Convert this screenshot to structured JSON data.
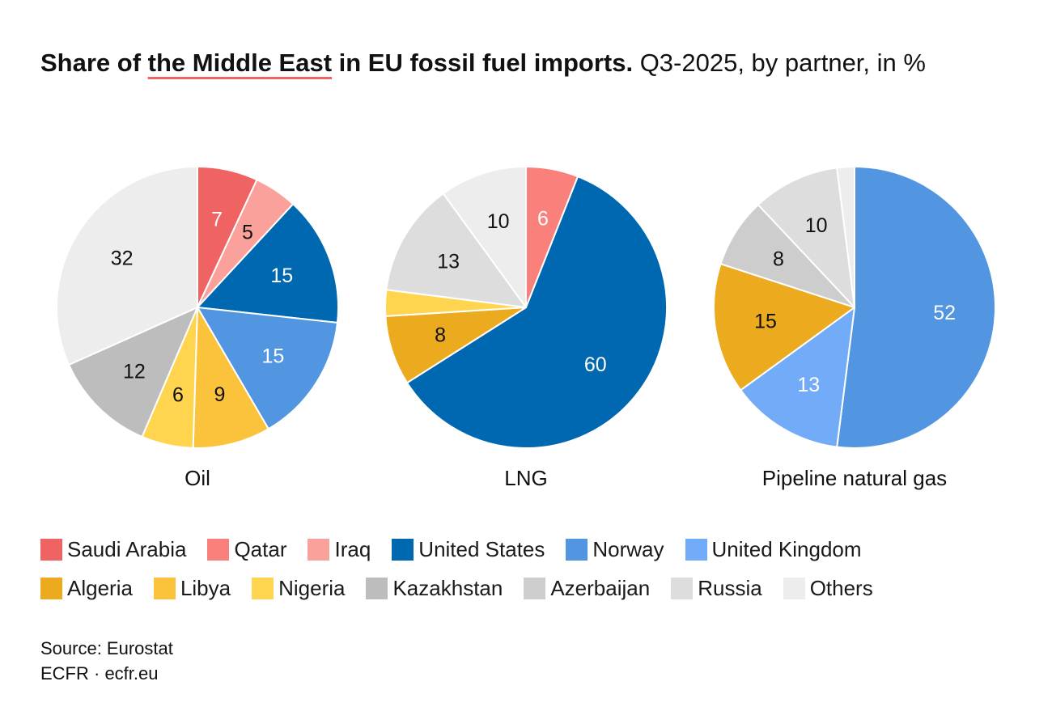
{
  "title": {
    "bold_before": "Share of ",
    "highlight": "the Middle East",
    "bold_after": " in EU fossil fuel imports.",
    "normal": " Q3-2025, by partner, in %"
  },
  "colors": {
    "Saudi Arabia": "#ef6363",
    "Qatar": "#fa817b",
    "Iraq": "#fba19c",
    "United States": "#0068b0",
    "Norway": "#5296e2",
    "United Kingdom": "#72acf8",
    "Algeria": "#ecab1f",
    "Libya": "#fbc23b",
    "Nigeria": "#ffd54f",
    "Kazakhstan": "#bdbdbd",
    "Azerbaijan": "#cdcdcd",
    "Russia": "#dddddd",
    "Others": "#ededed"
  },
  "chart_data": [
    {
      "type": "pie",
      "title": "Oil",
      "slices": [
        {
          "name": "Saudi Arabia",
          "value": 7,
          "label": "7",
          "label_color": "#ffffff"
        },
        {
          "name": "Iraq",
          "value": 5,
          "label": "5",
          "label_color": "#111111"
        },
        {
          "name": "United States",
          "value": 15,
          "label": "15",
          "label_color": "#ffffff"
        },
        {
          "name": "Norway",
          "value": 15,
          "label": "15",
          "label_color": "#ffffff"
        },
        {
          "name": "Libya",
          "value": 9,
          "label": "9",
          "label_color": "#111111"
        },
        {
          "name": "Nigeria",
          "value": 6,
          "label": "6",
          "label_color": "#111111"
        },
        {
          "name": "Kazakhstan",
          "value": 12,
          "label": "12",
          "label_color": "#111111"
        },
        {
          "name": "Others",
          "value": 32,
          "label": "32",
          "label_color": "#111111"
        }
      ]
    },
    {
      "type": "pie",
      "title": "LNG",
      "slices": [
        {
          "name": "Qatar",
          "value": 6,
          "label": "6",
          "label_color": "#ffffff"
        },
        {
          "name": "United States",
          "value": 60,
          "label": "60",
          "label_color": "#ffffff"
        },
        {
          "name": "Algeria",
          "value": 8,
          "label": "8",
          "label_color": "#111111"
        },
        {
          "name": "Nigeria",
          "value": 3,
          "label": "",
          "label_color": "#111111"
        },
        {
          "name": "Russia",
          "value": 13,
          "label": "13",
          "label_color": "#111111"
        },
        {
          "name": "Others",
          "value": 10,
          "label": "10",
          "label_color": "#111111"
        }
      ]
    },
    {
      "type": "pie",
      "title": "Pipeline natural gas",
      "slices": [
        {
          "name": "Norway",
          "value": 52,
          "label": "52",
          "label_color": "#ffffff"
        },
        {
          "name": "United Kingdom",
          "value": 13,
          "label": "13",
          "label_color": "#ffffff"
        },
        {
          "name": "Algeria",
          "value": 15,
          "label": "15",
          "label_color": "#111111"
        },
        {
          "name": "Azerbaijan",
          "value": 8,
          "label": "8",
          "label_color": "#111111"
        },
        {
          "name": "Russia",
          "value": 10,
          "label": "10",
          "label_color": "#111111"
        },
        {
          "name": "Others",
          "value": 2,
          "label": "",
          "label_color": "#111111"
        }
      ]
    }
  ],
  "legend": [
    [
      "Saudi Arabia",
      "Qatar",
      "Iraq",
      "United States",
      "Norway",
      "United Kingdom"
    ],
    [
      "Algeria",
      "Libya",
      "Nigeria",
      "Kazakhstan",
      "Azerbaijan",
      "Russia",
      "Others"
    ]
  ],
  "footer": {
    "source": "Source: Eurostat",
    "credit": "ECFR · ecfr.eu"
  }
}
